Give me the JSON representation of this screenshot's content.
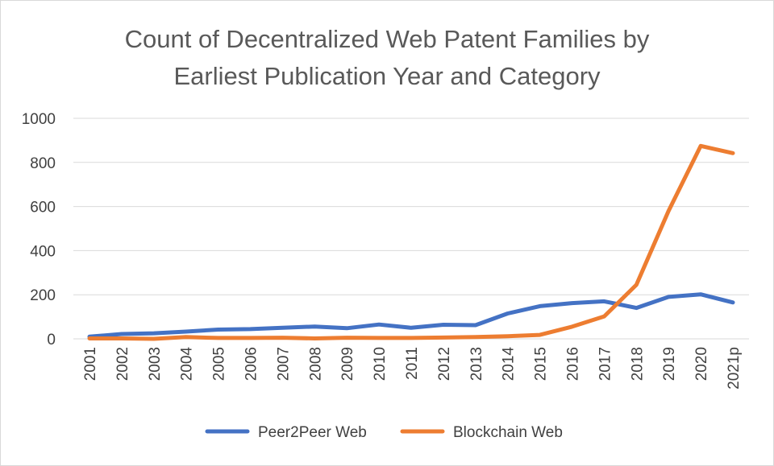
{
  "chart_data": {
    "type": "line",
    "title_lines": [
      "Count of Decentralized Web Patent Families by",
      "Earliest Publication Year and Category"
    ],
    "categories": [
      "2001",
      "2002",
      "2003",
      "2004",
      "2005",
      "2006",
      "2007",
      "2008",
      "2009",
      "2010",
      "2011",
      "2012",
      "2013",
      "2014",
      "2015",
      "2016",
      "2017",
      "2018",
      "2019",
      "2020",
      "2021p"
    ],
    "ylim": [
      0,
      1000
    ],
    "yticks": [
      0,
      200,
      400,
      600,
      800,
      1000
    ],
    "grid": true,
    "legend_position": "bottom",
    "series": [
      {
        "name": "Peer2Peer Web",
        "color": "#4472C4",
        "values": [
          10,
          22,
          25,
          33,
          42,
          44,
          50,
          56,
          48,
          65,
          50,
          64,
          62,
          115,
          148,
          162,
          170,
          140,
          190,
          202,
          165
        ]
      },
      {
        "name": "Blockchain Web",
        "color": "#ED7D31",
        "values": [
          2,
          2,
          0,
          8,
          4,
          4,
          5,
          2,
          5,
          4,
          4,
          6,
          8,
          12,
          18,
          55,
          102,
          245,
          580,
          875,
          842
        ]
      }
    ]
  }
}
